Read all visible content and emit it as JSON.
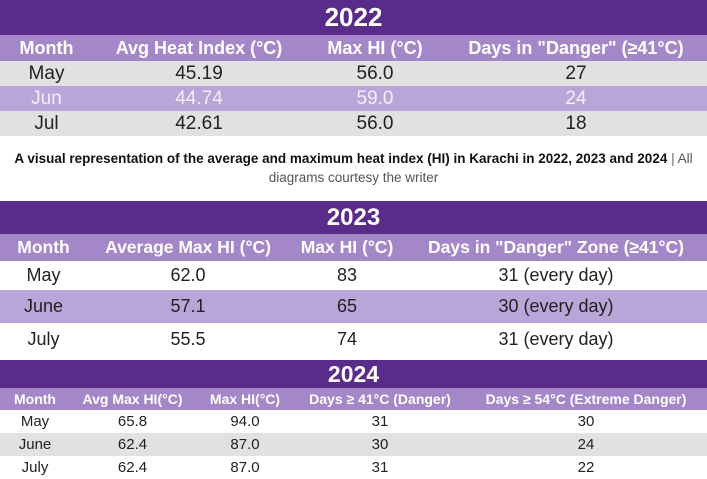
{
  "table_2022": {
    "title": "2022",
    "headers": [
      "Month",
      "Avg Heat Index (°C)",
      "Max HI (°C)",
      "Days in \"Danger\" (≥41°C)"
    ],
    "rows": [
      [
        "May",
        "45.19",
        "56.0",
        "27"
      ],
      [
        "Jun",
        "44.74",
        "59.0",
        "24"
      ],
      [
        "Jul",
        "42.61",
        "56.0",
        "18"
      ]
    ]
  },
  "caption": {
    "main": "A visual representation of the average and maximum heat index (HI) in Karachi in 2022, 2023 and 2024",
    "separator": "|",
    "credit": "All diagrams courtesy the writer"
  },
  "table_2023": {
    "title": "2023",
    "headers": [
      "Month",
      "Average Max HI (°C)",
      "Max HI (°C)",
      "Days in \"Danger\" Zone (≥41°C)"
    ],
    "rows": [
      [
        "May",
        "62.0",
        "83",
        "31 (every day)"
      ],
      [
        "June",
        "57.1",
        "65",
        "30 (every day)"
      ],
      [
        "July",
        "55.5",
        "74",
        "31 (every day)"
      ]
    ]
  },
  "table_2024": {
    "title": "2024",
    "headers": [
      "Month",
      "Avg Max HI(°C)",
      "Max HI(°C)",
      "Days ≥ 41°C (Danger)",
      "Days ≥ 54°C (Extreme Danger)"
    ],
    "rows": [
      [
        "May",
        "65.8",
        "94.0",
        "31",
        "30"
      ],
      [
        "June",
        "62.4",
        "87.0",
        "30",
        "24"
      ],
      [
        "July",
        "62.4",
        "87.0",
        "31",
        "22"
      ]
    ]
  },
  "colors": {
    "title_bar": "#5a2c8a",
    "header_row": "#a487c8",
    "highlight_row": "#b9a5d8",
    "grey_row": "#e1e1e1"
  }
}
